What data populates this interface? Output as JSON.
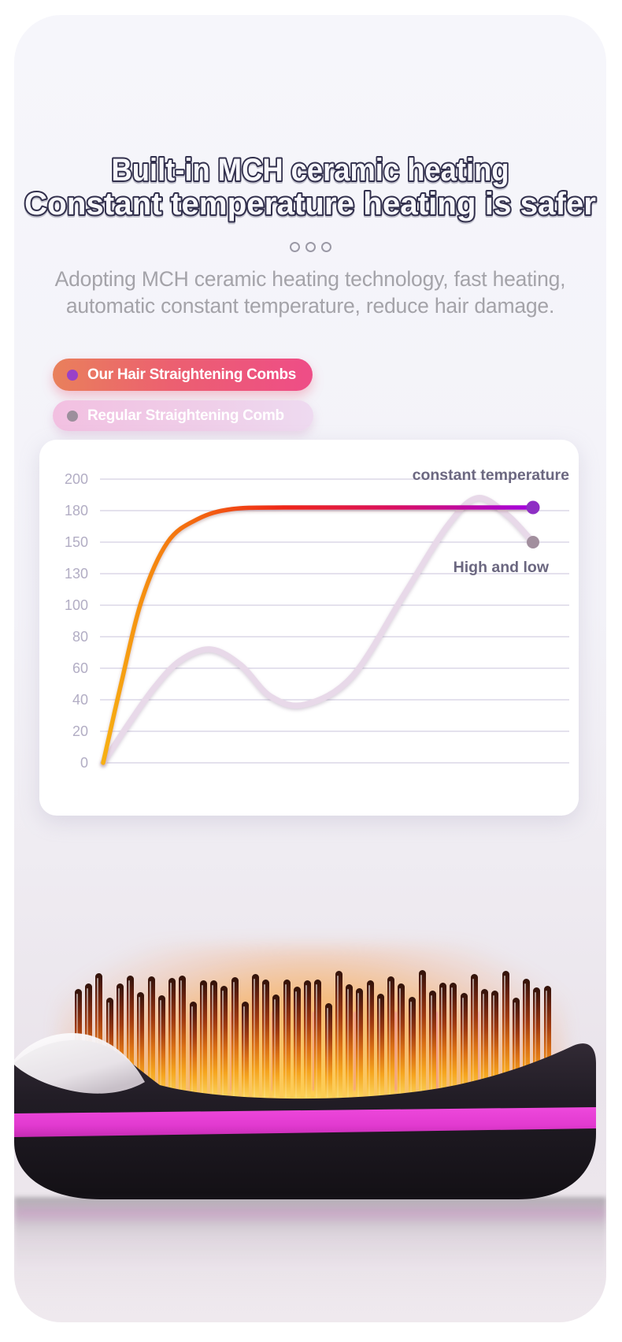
{
  "page": {
    "background": "#ffffff"
  },
  "panel": {
    "bg_top": "#f6f6fb",
    "bg_bottom": "#efe9ee"
  },
  "header": {
    "title_line1": "Built-in MCH ceramic heating",
    "title_line2": "Constant temperature heating is safer",
    "title_outline_color": "#312f4c",
    "divider_dots": 3,
    "subtitle_line1": "Adopting MCH ceramic heating technology, fast heating,",
    "subtitle_line2": "automatic constant temperature, reduce hair damage.",
    "subtitle_color": "#a4a3a9"
  },
  "legend": [
    {
      "label": "Our Hair Straightening Combs",
      "pill_gradient": [
        "#e9805b",
        "#ee4d87"
      ],
      "dot_color": "#9a41c8",
      "text_color": "#ffffff"
    },
    {
      "label": "Regular Straightening Comb",
      "pill_gradient": [
        "#f2c0e1",
        "#eedaf0"
      ],
      "dot_color": "#9c8f9c",
      "text_color": "#ffffff"
    }
  ],
  "chart_data": {
    "type": "line",
    "title": "",
    "xlabel": "",
    "ylabel": "",
    "grid": true,
    "gridline_color": "#dbd7e7",
    "tick_label_color": "#b2adc4",
    "annotation_color": "#6b6780",
    "y_axis": {
      "tick_labels_top_to_bottom": [
        200,
        180,
        150,
        130,
        100,
        80,
        60,
        40,
        20,
        0
      ],
      "evenly_spaced_gridlines": true
    },
    "x_axis": {
      "tick_labels": []
    },
    "series": [
      {
        "name": "Regular Straightening Comb",
        "annotation": "High and low",
        "color": "#e8d9e9",
        "end_dot_color": "#a28f9e",
        "x_pct": [
          0,
          6,
          12,
          18,
          25,
          32,
          39,
          47,
          58,
          70,
          80,
          87,
          94,
          100
        ],
        "values": [
          0,
          25,
          48,
          65,
          72,
          62,
          42,
          37,
          55,
          110,
          165,
          188,
          176,
          150
        ]
      },
      {
        "name": "Our Hair Straightening Combs",
        "annotation": "constant temperature",
        "gradient": [
          "#f7b013",
          "#f4720f",
          "#ee2618",
          "#d90f62",
          "#a303e2"
        ],
        "end_dot_color": "#8e2fc4",
        "x_pct": [
          0,
          4,
          9,
          15,
          22,
          30,
          42,
          60,
          80,
          100
        ],
        "values": [
          0,
          48,
          105,
          150,
          172,
          181,
          182,
          182,
          182,
          182
        ]
      }
    ]
  },
  "product": {
    "description": "Hair straightening comb with glowing heated bristles, black body and magenta stripe",
    "body_color": "#1c1820",
    "stripe_color": "#e23ad0",
    "bristle_gradient": [
      "#30120a",
      "#a03a10",
      "#f5a41e",
      "#fbd45c"
    ],
    "bristle_count": 46
  }
}
